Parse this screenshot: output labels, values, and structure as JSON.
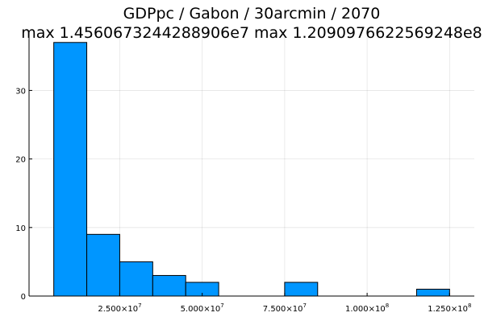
{
  "chart_data": {
    "type": "bar",
    "title_line1": "GDPpc / Gabon / 30arcmin / 2070",
    "title_line2": "max 1.4560673244288906e7  max 1.2090976622569248e8",
    "bin_edges": [
      5000000,
      15000000,
      25000000,
      35000000,
      45000000,
      55000000,
      65000000,
      75000000,
      85000000,
      95000000,
      105000000,
      115000000,
      125000000
    ],
    "counts": [
      37,
      9,
      5,
      3,
      2,
      0,
      0,
      2,
      0,
      0,
      0,
      1
    ],
    "xlim": [
      -2500000,
      132500000
    ],
    "ylim": [
      0,
      38.5
    ],
    "x_ticks": [
      {
        "value": 25000000,
        "mantissa": "2.500×10",
        "exp": "7"
      },
      {
        "value": 50000000,
        "mantissa": "5.000×10",
        "exp": "7"
      },
      {
        "value": 75000000,
        "mantissa": "7.500×10",
        "exp": "7"
      },
      {
        "value": 100000000,
        "mantissa": "1.000×10",
        "exp": "8"
      },
      {
        "value": 125000000,
        "mantissa": "1.250×10",
        "exp": "8"
      }
    ],
    "y_ticks": [
      0,
      10,
      20,
      30
    ],
    "grid": true,
    "legend": "none",
    "bar_color": "#0096FF",
    "edge_color": "#000000"
  }
}
